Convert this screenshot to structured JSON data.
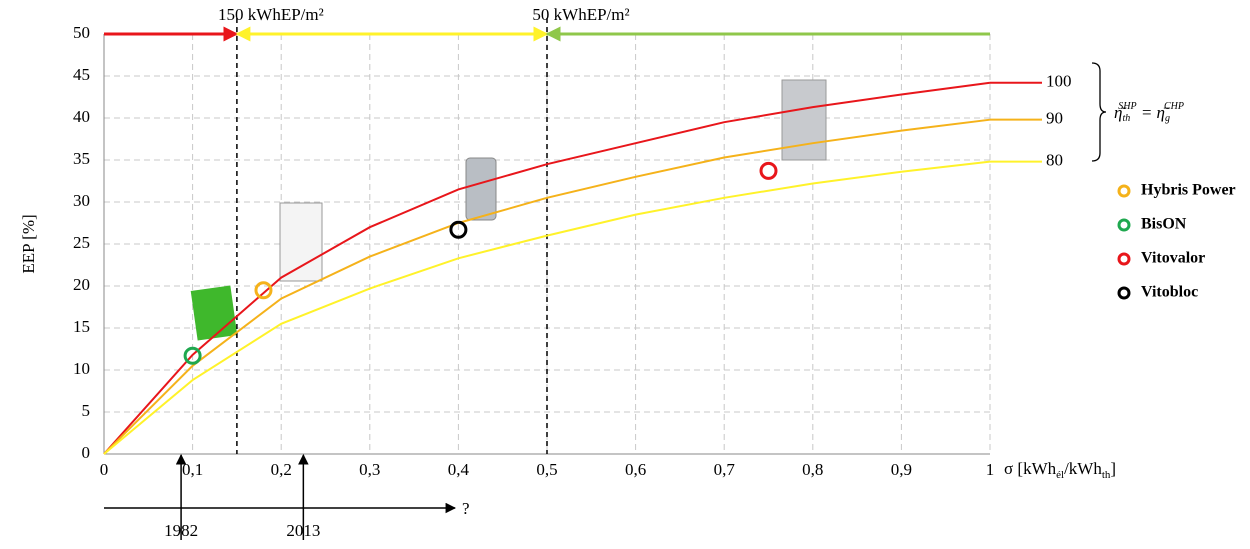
{
  "chart_data": {
    "type": "line",
    "y_label": "EEP [%]",
    "x_label": {
      "main": "σ [kWh",
      "sub1": "él",
      "mid": "/kWh",
      "sub2": "th",
      "end": "]"
    },
    "x": [
      0,
      0.1,
      0.2,
      0.3,
      0.4,
      0.5,
      0.6,
      0.7,
      0.8,
      0.9,
      1
    ],
    "series": [
      {
        "name": "100",
        "color": "#e8161b",
        "values": [
          0,
          11.8,
          21,
          27,
          31.5,
          34.5,
          37,
          39.5,
          41.3,
          42.8,
          44.2
        ]
      },
      {
        "name": "90",
        "color": "#f5b21a",
        "values": [
          0,
          10.5,
          18.5,
          23.5,
          27.5,
          30.5,
          33,
          35.3,
          37,
          38.5,
          39.8
        ]
      },
      {
        "name": "80",
        "color": "#fff22a",
        "values": [
          0,
          8.8,
          15.5,
          19.7,
          23.3,
          26,
          28.5,
          30.5,
          32.2,
          33.6,
          34.8
        ]
      }
    ],
    "bracket_label": {
      "base1": "η̄",
      "sub1": "th",
      "sup1": "SHP",
      "eq": " = ",
      "base2": "η̄",
      "sub2": "g",
      "sup2": "CHP"
    },
    "points": [
      {
        "name": "Hybris Power",
        "color": "#f5b21a",
        "x": 0.18,
        "y": 19.5
      },
      {
        "name": "BisON",
        "color": "#1fa84f",
        "x": 0.1,
        "y": 11.7
      },
      {
        "name": "Vitovalor",
        "color": "#e8161b",
        "x": 0.75,
        "y": 33.7
      },
      {
        "name": "Vitobloc",
        "color": "#000000",
        "x": 0.4,
        "y": 26.7
      }
    ],
    "thresholds": [
      {
        "x": 0.15,
        "label": "150 kWhEP/m²"
      },
      {
        "x": 0.5,
        "label": "50 kWhEP/m²"
      }
    ],
    "zones": [
      {
        "from": 0,
        "to": 0.15,
        "color": "#e8161b"
      },
      {
        "from": 0.15,
        "to": 0.5,
        "color": "#fff22a"
      },
      {
        "from": 0.5,
        "to": 1,
        "color": "#8fc74a"
      }
    ],
    "timeline": {
      "events": [
        {
          "x": 0.087,
          "label": "1982"
        },
        {
          "x": 0.225,
          "label": "2013"
        }
      ],
      "end_label": "?"
    },
    "xlim": [
      0,
      1
    ],
    "ylim": [
      0,
      50
    ],
    "xticks": [
      {
        "value": 0,
        "label": "0"
      },
      {
        "value": 0.1,
        "label": "0,1"
      },
      {
        "value": 0.2,
        "label": "0,2"
      },
      {
        "value": 0.3,
        "label": "0,3"
      },
      {
        "value": 0.4,
        "label": "0,4"
      },
      {
        "value": 0.5,
        "label": "0,5"
      },
      {
        "value": 0.6,
        "label": "0,6"
      },
      {
        "value": 0.7,
        "label": "0,7"
      },
      {
        "value": 0.8,
        "label": "0,8"
      },
      {
        "value": 0.9,
        "label": "0,9"
      },
      {
        "value": 1,
        "label": "1"
      }
    ],
    "yticks": [
      0,
      5,
      10,
      15,
      20,
      25,
      30,
      35,
      40,
      45,
      50
    ],
    "grid": true
  }
}
